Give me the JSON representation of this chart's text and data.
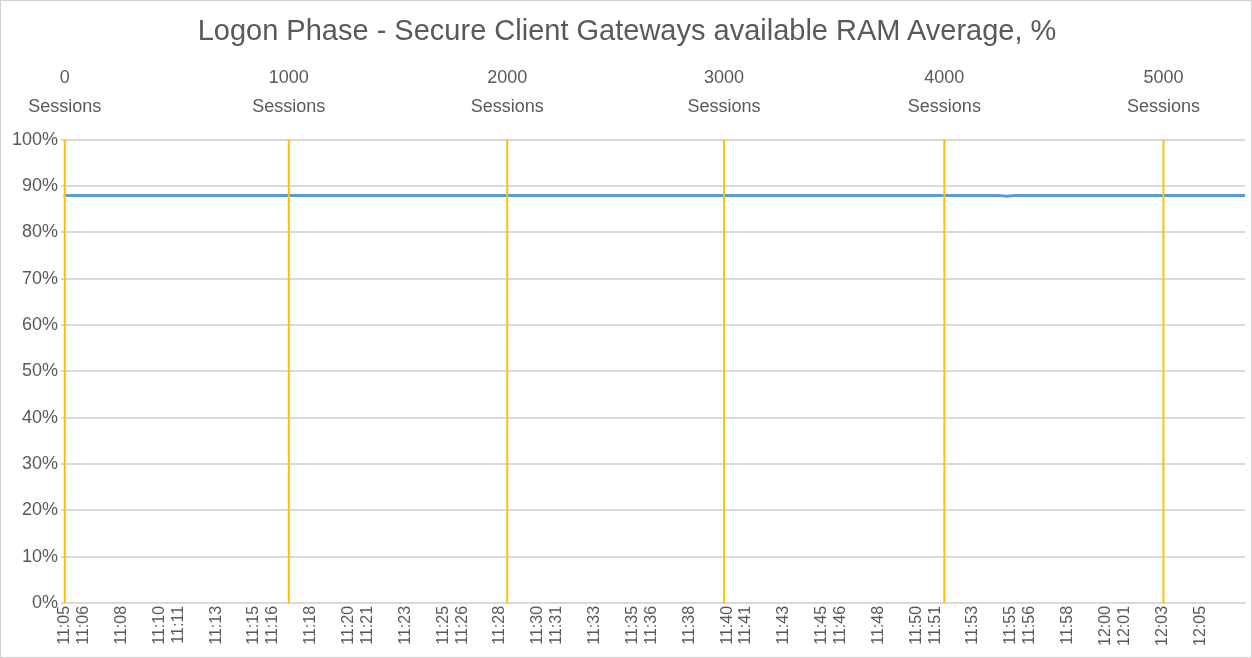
{
  "chart_data": {
    "type": "line",
    "title": "Logon Phase - Secure Client Gateways available RAM Average, %",
    "series": [
      {
        "color": "#5b9bd5",
        "x": [
          11.0833,
          11.905,
          11.913,
          11.921,
          12.1228
        ],
        "values": [
          88,
          88,
          87.8,
          88,
          88
        ]
      }
    ],
    "xlim": [
      11.08,
      12.1228
    ],
    "xticks": [
      {
        "value": 11.0833,
        "label": "11:05"
      },
      {
        "value": 11.1,
        "label": "11:06"
      },
      {
        "value": 11.1333,
        "label": "11:08"
      },
      {
        "value": 11.1667,
        "label": "11:10"
      },
      {
        "value": 11.1833,
        "label": "11:11"
      },
      {
        "value": 11.2167,
        "label": "11:13"
      },
      {
        "value": 11.25,
        "label": "11:15"
      },
      {
        "value": 11.2667,
        "label": "11:16"
      },
      {
        "value": 11.3,
        "label": "11:18"
      },
      {
        "value": 11.3333,
        "label": "11:20"
      },
      {
        "value": 11.35,
        "label": "11:21"
      },
      {
        "value": 11.3833,
        "label": "11:23"
      },
      {
        "value": 11.4167,
        "label": "11:25"
      },
      {
        "value": 11.4333,
        "label": "11:26"
      },
      {
        "value": 11.4667,
        "label": "11:28"
      },
      {
        "value": 11.5,
        "label": "11:30"
      },
      {
        "value": 11.5167,
        "label": "11:31"
      },
      {
        "value": 11.55,
        "label": "11:33"
      },
      {
        "value": 11.5833,
        "label": "11:35"
      },
      {
        "value": 11.6,
        "label": "11:36"
      },
      {
        "value": 11.6333,
        "label": "11:38"
      },
      {
        "value": 11.6667,
        "label": "11:40"
      },
      {
        "value": 11.6833,
        "label": "11:41"
      },
      {
        "value": 11.7167,
        "label": "11:43"
      },
      {
        "value": 11.75,
        "label": "11:45"
      },
      {
        "value": 11.7667,
        "label": "11:46"
      },
      {
        "value": 11.8,
        "label": "11:48"
      },
      {
        "value": 11.8333,
        "label": "11:50"
      },
      {
        "value": 11.85,
        "label": "11:51"
      },
      {
        "value": 11.8833,
        "label": "11:53"
      },
      {
        "value": 11.9167,
        "label": "11:55"
      },
      {
        "value": 11.9333,
        "label": "11:56"
      },
      {
        "value": 11.9667,
        "label": "11:58"
      },
      {
        "value": 12.0,
        "label": "12:00"
      },
      {
        "value": 12.0167,
        "label": "12:01"
      },
      {
        "value": 12.05,
        "label": "12:03"
      },
      {
        "value": 12.0833,
        "label": "12:05"
      }
    ],
    "ylim": [
      0,
      100
    ],
    "yticks": [
      {
        "value": 0,
        "label": "0%"
      },
      {
        "value": 10,
        "label": "10%"
      },
      {
        "value": 20,
        "label": "20%"
      },
      {
        "value": 30,
        "label": "30%"
      },
      {
        "value": 40,
        "label": "40%"
      },
      {
        "value": 50,
        "label": "50%"
      },
      {
        "value": 60,
        "label": "60%"
      },
      {
        "value": 70,
        "label": "70%"
      },
      {
        "value": 80,
        "label": "80%"
      },
      {
        "value": 90,
        "label": "90%"
      },
      {
        "value": 100,
        "label": "100%"
      }
    ],
    "ref_lines": [
      {
        "axis": "x",
        "value": 11.0833,
        "label": "0 Sessions",
        "color": "#ffc000"
      },
      {
        "axis": "x",
        "value": 11.2806,
        "label": "1000 Sessions",
        "color": "#ffc000"
      },
      {
        "axis": "x",
        "value": 11.473,
        "label": "2000 Sessions",
        "color": "#ffc000"
      },
      {
        "axis": "x",
        "value": 11.664,
        "label": "3000 Sessions",
        "color": "#ffc000"
      },
      {
        "axis": "x",
        "value": 11.858,
        "label": "4000 Sessions",
        "color": "#ffc000"
      },
      {
        "axis": "x",
        "value": 12.051,
        "label": "5000 Sessions",
        "color": "#ffc000"
      }
    ],
    "grid": "y",
    "legend": false,
    "marker": "none",
    "line_style": "solid"
  }
}
